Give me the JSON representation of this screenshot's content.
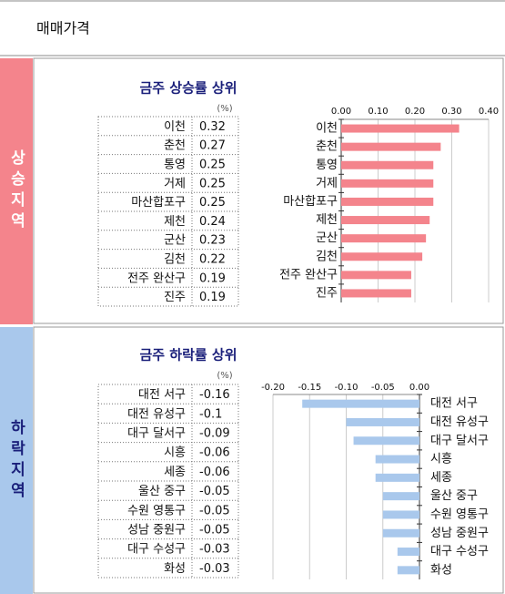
{
  "header": {
    "title": "매매가격"
  },
  "chart_data": [
    {
      "type": "hbar",
      "section_label": "상승지역",
      "title": "금주 상승률 상위",
      "unit": "(%)",
      "categories": [
        "이천",
        "춘천",
        "통영",
        "거제",
        "마산합포구",
        "제천",
        "군산",
        "김천",
        "전주 완산구",
        "진주"
      ],
      "values": [
        0.32,
        0.27,
        0.25,
        0.25,
        0.25,
        0.24,
        0.23,
        0.22,
        0.19,
        0.19
      ],
      "color": "#f4848c",
      "xlim": [
        0,
        0.4
      ],
      "xticks": [
        {
          "value": 0,
          "label": "0.00"
        },
        {
          "value": 0.1,
          "label": "0.10"
        },
        {
          "value": 0.2,
          "label": "0.20"
        },
        {
          "value": 0.3,
          "label": "0.30"
        },
        {
          "value": 0.4,
          "label": "0.40"
        }
      ],
      "grid": true
    },
    {
      "type": "hbar",
      "section_label": "하락지역",
      "title": "금주 하락률 상위",
      "unit": "(%)",
      "categories": [
        "대전 서구",
        "대전 유성구",
        "대구 달서구",
        "시흥",
        "세종",
        "울산 중구",
        "수원 영통구",
        "성남 중원구",
        "대구 수성구",
        "화성"
      ],
      "values": [
        -0.16,
        -0.1,
        -0.09,
        -0.06,
        -0.06,
        -0.05,
        -0.05,
        -0.05,
        -0.03,
        -0.03
      ],
      "color": "#a9c8ec",
      "xlim": [
        -0.2,
        0
      ],
      "xticks": [
        {
          "value": -0.2,
          "label": "-0.20"
        },
        {
          "value": -0.15,
          "label": "-0.15"
        },
        {
          "value": -0.1,
          "label": "-0.10"
        },
        {
          "value": -0.05,
          "label": "-0.05"
        },
        {
          "value": 0,
          "label": "0.00"
        }
      ],
      "grid": true
    }
  ]
}
